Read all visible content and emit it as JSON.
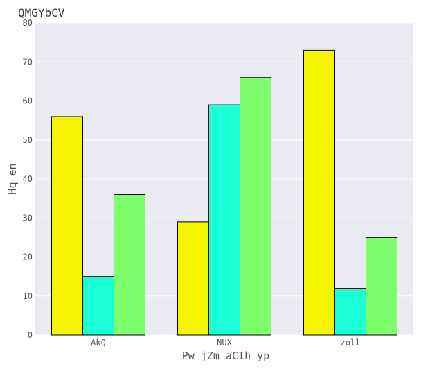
{
  "chart_data": {
    "type": "bar",
    "title": "QMGYbCV",
    "xlabel": "Pw jZm aCIh yp",
    "ylabel": "Hq en",
    "categories": [
      "AkQ",
      "NUX",
      "zoll"
    ],
    "series": [
      {
        "values": [
          56,
          29,
          73
        ],
        "color": "#f5f500"
      },
      {
        "values": [
          15,
          59,
          12
        ],
        "color": "#1affd5"
      },
      {
        "values": [
          36,
          66,
          25
        ],
        "color": "#80ff6e"
      }
    ],
    "ylim": [
      0,
      80
    ],
    "yticks": [
      0,
      10,
      20,
      30,
      40,
      50,
      60,
      70,
      80
    ],
    "grid": true,
    "legend": "none",
    "background_color": "#eaeaf2"
  }
}
